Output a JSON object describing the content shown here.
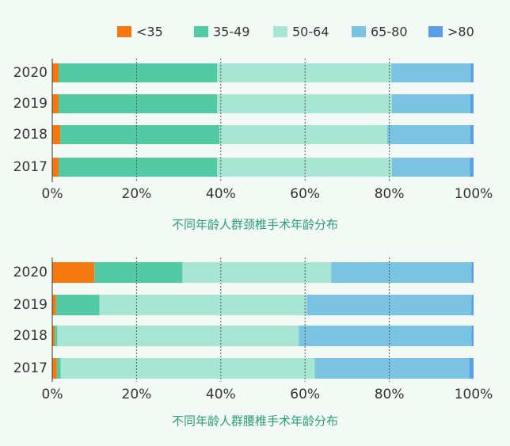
{
  "chart_data": [
    {
      "type": "stacked-bar-horizontal",
      "title": "不同年龄人群颈椎手术年龄分布",
      "categories": [
        "2020",
        "2019",
        "2018",
        "2017"
      ],
      "series": [
        {
          "name": "<35",
          "color": "#f5790f",
          "values": [
            1.5,
            1.5,
            1.9,
            1.5
          ]
        },
        {
          "name": "35-49",
          "color": "#52cba5",
          "values": [
            37.6,
            37.6,
            37.8,
            37.6
          ]
        },
        {
          "name": "50-64",
          "color": "#a6e6d3",
          "values": [
            41.4,
            41.5,
            39.8,
            41.5
          ]
        },
        {
          "name": "65-80",
          "color": "#7ac3e3",
          "values": [
            18.8,
            18.6,
            19.7,
            18.5
          ]
        },
        {
          "name": ">80",
          "color": "#5a9ee8",
          "values": [
            0.7,
            0.8,
            0.8,
            0.9
          ]
        }
      ],
      "xlim": [
        0,
        100
      ],
      "xticks": [
        {
          "value": 0,
          "label": "0%"
        },
        {
          "value": 20,
          "label": "20%"
        },
        {
          "value": 40,
          "label": "40%"
        },
        {
          "value": 60,
          "label": "60%"
        },
        {
          "value": 80,
          "label": "80%"
        },
        {
          "value": 100,
          "label": "100%"
        }
      ],
      "grid": true,
      "legend": "top"
    },
    {
      "type": "stacked-bar-horizontal",
      "title": "不同年龄人群腰椎手术年龄分布",
      "categories": [
        "2020",
        "2019",
        "2018",
        "2017"
      ],
      "series": [
        {
          "color": "#f5790f",
          "values": [
            10,
            0.9,
            0.6,
            1.1
          ]
        },
        {
          "color": "#52cba5",
          "values": [
            20.9,
            10.3,
            0.6,
            0.9
          ]
        },
        {
          "color": "#a6e6d3",
          "values": [
            35.3,
            49.2,
            57.3,
            60.3
          ]
        },
        {
          "color": "#7ac3e3",
          "values": [
            33.3,
            39.1,
            41,
            36.7
          ]
        },
        {
          "color": "#5a9ee8",
          "values": [
            0.5,
            0.5,
            0.5,
            1.0
          ]
        }
      ],
      "xlim": [
        0,
        100
      ],
      "xticks": [
        {
          "value": 0,
          "label": "0%"
        },
        {
          "value": 20,
          "label": "20%"
        },
        {
          "value": 40,
          "label": "40%"
        },
        {
          "value": 60,
          "label": "60%"
        },
        {
          "value": 80,
          "label": "80%"
        },
        {
          "value": 100,
          "label": "100%"
        }
      ],
      "grid": true
    }
  ]
}
